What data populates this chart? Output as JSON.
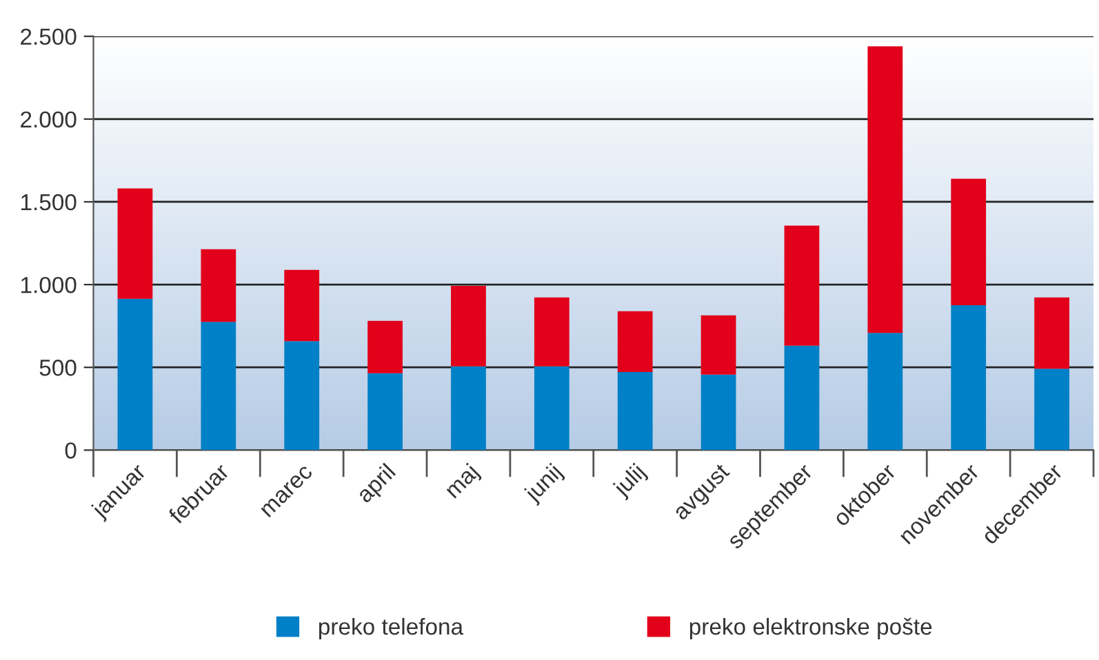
{
  "chart_data": {
    "type": "bar",
    "stacked": true,
    "categories": [
      "januar",
      "februar",
      "marec",
      "april",
      "maj",
      "junij",
      "julij",
      "avgust",
      "september",
      "oktober",
      "november",
      "december"
    ],
    "series": [
      {
        "name": "preko telefona",
        "color": "#0080c6",
        "values": [
          914,
          775,
          658,
          464,
          506,
          506,
          472,
          456,
          631,
          708,
          875,
          492
        ]
      },
      {
        "name": "preko elektronske pošte",
        "color": "#e2001a",
        "values": [
          667,
          439,
          431,
          317,
          486,
          416,
          367,
          358,
          725,
          1731,
          764,
          430
        ]
      }
    ],
    "ylim": [
      0,
      2500
    ],
    "yticks": [
      {
        "value": 0,
        "label": "0"
      },
      {
        "value": 500,
        "label": "500"
      },
      {
        "value": 1000,
        "label": "1.000"
      },
      {
        "value": 1500,
        "label": "1.500"
      },
      {
        "value": 2000,
        "label": "2.000"
      },
      {
        "value": 2500,
        "label": "2.500"
      }
    ],
    "grid": "y",
    "legend": "bottom"
  }
}
